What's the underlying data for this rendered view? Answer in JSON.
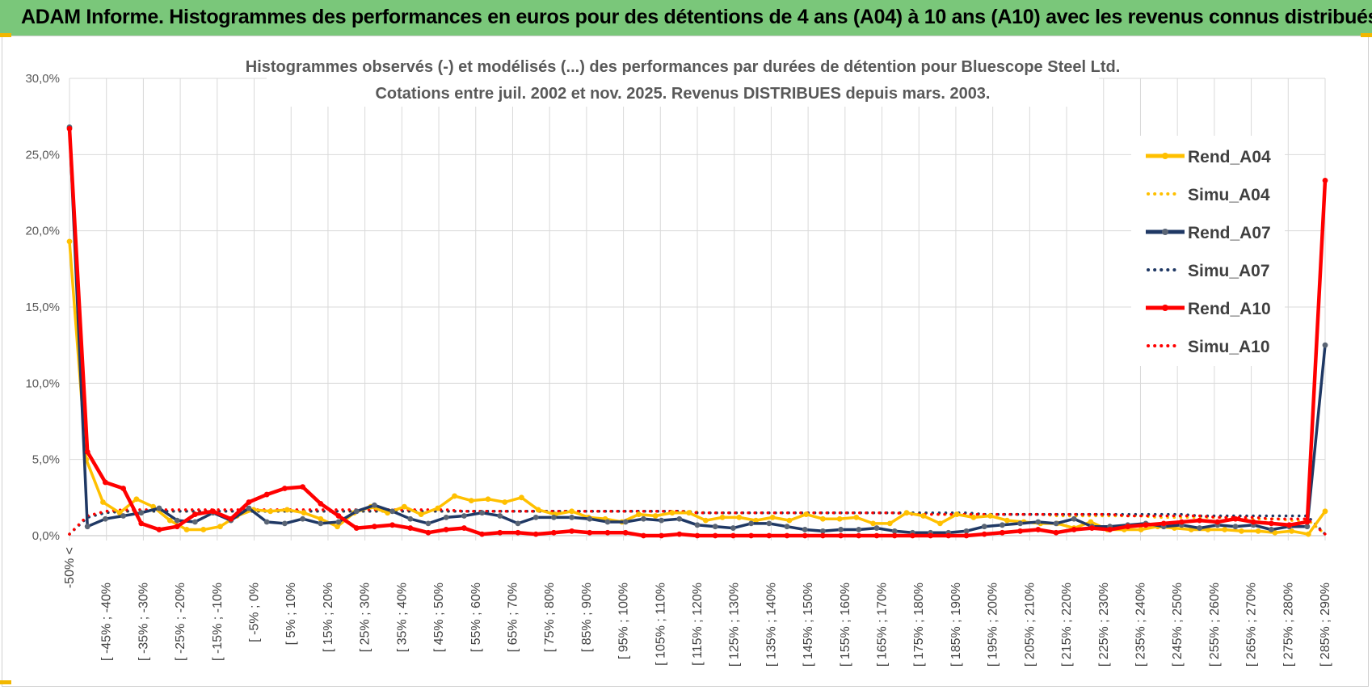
{
  "banner": {
    "title": "ADAM Informe. Histogrammes des performances en euros pour des détentions de 4 ans (A04) à 10 ans (A10) avec les revenus connus distribués"
  },
  "colors": {
    "banner": "#7ac77a",
    "A04": "#ffc000",
    "A07": "#1f3864",
    "A10": "#ff0000",
    "marker07": "#5a6575"
  },
  "chart_data": {
    "type": "line",
    "title": "Histogrammes observés (-) et modélisés (...) des performances par durées de détention pour Bluescope Steel Ltd.",
    "subtitle": "Cotations entre juil. 2002 et nov. 2025. Revenus DISTRIBUES depuis mars. 2003.",
    "xlabel": "",
    "ylabel": "",
    "ylim": [
      0,
      30
    ],
    "yticks": [
      "0,0%",
      "5,0%",
      "10,0%",
      "15,0%",
      "20,0%",
      "25,0%",
      "30,0%"
    ],
    "grid": true,
    "legend_position": "top-right",
    "tick_labels": [
      "-50% <",
      "[ -45% ; -40%",
      "[ -35% ; -30%",
      "[ -25% ; -20%",
      "[ -15% ; -10%",
      "[ -5% ; 0%",
      "[ 5% ; 10%",
      "[ 15% ; 20%",
      "[ 25% ; 30%",
      "[ 35% ; 40%",
      "[ 45% ; 50%",
      "[ 55% ; 60%",
      "[ 65% ; 70%",
      "[ 75% ; 80%",
      "[ 85% ; 90%",
      "[ 95% ; 100%",
      "[ 105% ; 110%",
      "[ 115% ; 120%",
      "[ 125% ; 130%",
      "[ 135% ; 140%",
      "[ 145% ; 150%",
      "[ 155% ; 160%",
      "[ 165% ; 170%",
      "[ 175% ; 180%",
      "[ 185% ; 190%",
      "[ 195% ; 200%",
      "[ 205% ; 210%",
      "[ 215% ; 220%",
      "[ 225% ; 230%",
      "[ 235% ; 240%",
      "[ 245% ; 250%",
      "[ 255% ; 260%",
      "[ 265% ; 270%",
      "[ 275% ; 280%",
      "[ 285% ; 290%"
    ],
    "series": [
      {
        "name": "Rend_A04",
        "style": "solid",
        "color": "#ffc000",
        "values": [
          19.3,
          5.0,
          2.2,
          1.5,
          2.4,
          1.9,
          1.0,
          0.4,
          0.4,
          0.6,
          1.3,
          1.7,
          1.6,
          1.7,
          1.5,
          1.1,
          0.6,
          1.5,
          1.9,
          1.5,
          1.9,
          1.4,
          1.8,
          2.6,
          2.3,
          2.4,
          2.2,
          2.5,
          1.7,
          1.4,
          1.6,
          1.2,
          1.1,
          0.9,
          1.4,
          1.3,
          1.5,
          1.5,
          1.0,
          1.2,
          1.2,
          1.0,
          1.2,
          1.0,
          1.4,
          1.1,
          1.1,
          1.2,
          0.8,
          0.8,
          1.5,
          1.3,
          0.8,
          1.4,
          1.2,
          1.3,
          1.0,
          0.9,
          0.8,
          0.8,
          0.5,
          0.9,
          0.4,
          0.4,
          0.4,
          0.6,
          0.5,
          0.4,
          0.4,
          0.4,
          0.3,
          0.3,
          0.2,
          0.3,
          0.1,
          1.6
        ]
      },
      {
        "name": "Simu_A04",
        "style": "dotted",
        "color": "#ffc000",
        "values": [
          0.1,
          1.2,
          1.5,
          1.6,
          1.6,
          1.6,
          1.6,
          1.6,
          1.6,
          1.6,
          1.6,
          1.6,
          1.6,
          1.6,
          1.6,
          1.6,
          1.6,
          1.6,
          1.6,
          1.6,
          1.6,
          1.6,
          1.6,
          1.6,
          1.6,
          1.6,
          1.6,
          1.6,
          1.6,
          1.6,
          1.6,
          1.6,
          1.6,
          1.6,
          1.6,
          1.6,
          1.6,
          1.6,
          1.5,
          1.5,
          1.5,
          1.5,
          1.5,
          1.5,
          1.5,
          1.5,
          1.5,
          1.5,
          1.5,
          1.5,
          1.5,
          1.5,
          1.4,
          1.4,
          1.4,
          1.4,
          1.4,
          1.4,
          1.4,
          1.3,
          1.3,
          1.3,
          1.3,
          1.3,
          1.3,
          1.2,
          1.2,
          1.2,
          1.2,
          1.2,
          1.1,
          1.1,
          1.1,
          1.0,
          1.0,
          0.1
        ]
      },
      {
        "name": "Rend_A07",
        "style": "solid",
        "color": "#1f3864",
        "values": [
          26.8,
          0.6,
          1.1,
          1.3,
          1.5,
          1.8,
          1.0,
          0.9,
          1.5,
          1.0,
          1.8,
          0.9,
          0.8,
          1.1,
          0.8,
          0.9,
          1.6,
          2.0,
          1.6,
          1.1,
          0.8,
          1.2,
          1.3,
          1.5,
          1.3,
          0.8,
          1.2,
          1.2,
          1.2,
          1.1,
          0.9,
          0.9,
          1.1,
          1.0,
          1.1,
          0.7,
          0.6,
          0.5,
          0.8,
          0.8,
          0.6,
          0.4,
          0.3,
          0.4,
          0.4,
          0.5,
          0.3,
          0.2,
          0.2,
          0.2,
          0.3,
          0.6,
          0.7,
          0.8,
          0.9,
          0.8,
          1.1,
          0.6,
          0.6,
          0.7,
          0.8,
          0.6,
          0.7,
          0.5,
          0.7,
          0.6,
          0.7,
          0.4,
          0.6,
          0.6,
          12.5
        ]
      },
      {
        "name": "Simu_A07",
        "style": "dotted",
        "color": "#1f3864",
        "values": [
          0.1,
          1.2,
          1.5,
          1.6,
          1.6,
          1.6,
          1.6,
          1.6,
          1.6,
          1.6,
          1.6,
          1.6,
          1.6,
          1.6,
          1.6,
          1.6,
          1.6,
          1.6,
          1.6,
          1.6,
          1.6,
          1.6,
          1.6,
          1.6,
          1.6,
          1.6,
          1.6,
          1.6,
          1.6,
          1.6,
          1.6,
          1.6,
          1.6,
          1.6,
          1.6,
          1.5,
          1.5,
          1.5,
          1.5,
          1.5,
          1.5,
          1.5,
          1.5,
          1.5,
          1.5,
          1.5,
          1.5,
          1.5,
          1.5,
          1.5,
          1.5,
          1.4,
          1.4,
          1.4,
          1.4,
          1.4,
          1.4,
          1.4,
          1.4,
          1.4,
          1.4,
          1.4,
          1.4,
          1.3,
          1.3,
          1.3,
          1.3,
          1.3,
          1.3,
          1.3,
          0.1
        ]
      },
      {
        "name": "Rend_A10",
        "style": "solid",
        "color": "#ff0000",
        "values": [
          26.7,
          5.5,
          3.5,
          3.1,
          0.8,
          0.4,
          0.6,
          1.4,
          1.6,
          1.1,
          2.2,
          2.7,
          3.1,
          3.2,
          2.1,
          1.3,
          0.5,
          0.6,
          0.7,
          0.5,
          0.2,
          0.4,
          0.5,
          0.1,
          0.2,
          0.2,
          0.1,
          0.2,
          0.3,
          0.2,
          0.2,
          0.2,
          0.0,
          0.0,
          0.1,
          0.0,
          0.0,
          0.0,
          0.0,
          0.0,
          0.0,
          0.0,
          0.0,
          0.0,
          0.0,
          0.0,
          0.0,
          0.0,
          0.0,
          0.0,
          0.0,
          0.1,
          0.2,
          0.3,
          0.4,
          0.2,
          0.4,
          0.5,
          0.4,
          0.6,
          0.7,
          0.8,
          0.9,
          1.0,
          0.9,
          1.1,
          0.9,
          0.8,
          0.7,
          0.9,
          23.3
        ]
      },
      {
        "name": "Simu_A10",
        "style": "dotted",
        "color": "#ff0000",
        "values": [
          0.1,
          1.3,
          1.6,
          1.7,
          1.7,
          1.7,
          1.7,
          1.7,
          1.7,
          1.7,
          1.7,
          1.7,
          1.7,
          1.7,
          1.7,
          1.7,
          1.7,
          1.7,
          1.7,
          1.7,
          1.7,
          1.7,
          1.6,
          1.6,
          1.6,
          1.6,
          1.6,
          1.6,
          1.6,
          1.6,
          1.6,
          1.6,
          1.6,
          1.6,
          1.6,
          1.5,
          1.5,
          1.5,
          1.5,
          1.5,
          1.5,
          1.5,
          1.5,
          1.5,
          1.5,
          1.5,
          1.5,
          1.4,
          1.4,
          1.4,
          1.4,
          1.4,
          1.4,
          1.4,
          1.4,
          1.4,
          1.4,
          1.4,
          1.4,
          1.3,
          1.3,
          1.3,
          1.3,
          1.3,
          1.2,
          1.2,
          1.2,
          1.1,
          1.1,
          1.1,
          0.1
        ]
      }
    ]
  }
}
